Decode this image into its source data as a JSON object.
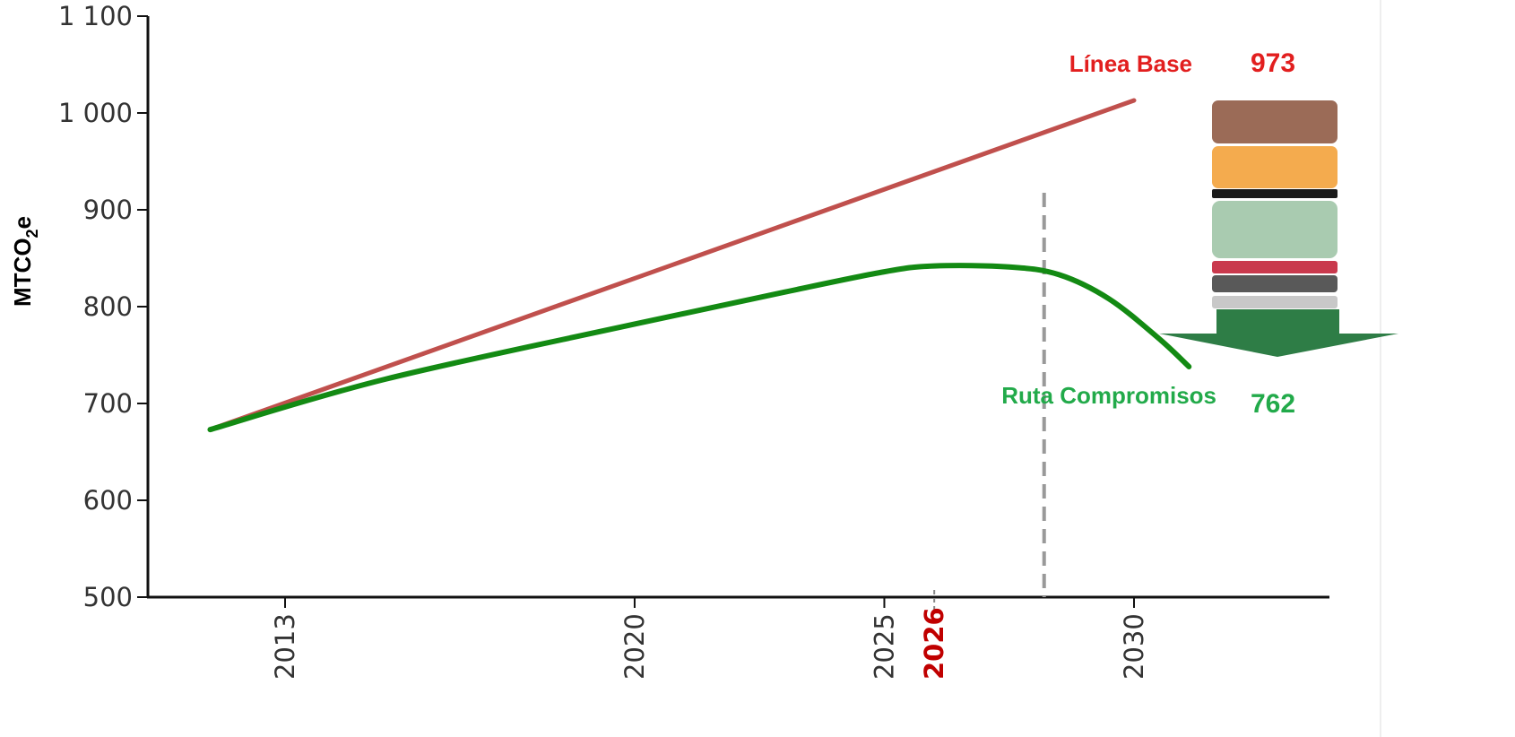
{
  "chart_data": {
    "type": "line",
    "ylabel": "MTCO2e",
    "ylabel_main": "MTCO",
    "ylabel_sub": "2",
    "ylabel_tail": "e",
    "ylim": [
      500,
      1100
    ],
    "yticks": [
      500,
      600,
      700,
      800,
      900,
      1000,
      1100
    ],
    "ytick_labels": [
      "500",
      "600",
      "700",
      "800",
      "900",
      "1 000",
      "1 100"
    ],
    "xlim": [
      2010.5,
      2033.5
    ],
    "xticks": [
      2013,
      2020,
      2025,
      2030
    ],
    "xtick_labels": [
      "2013",
      "2020",
      "2025",
      "2030"
    ],
    "highlight_tick": {
      "x": 2026,
      "label": "2026",
      "color": "#c00000"
    },
    "grid": false,
    "series": [
      {
        "name": "Línea Base",
        "color": "#c0504d",
        "x": [
          2011.5,
          2030
        ],
        "y": [
          673,
          1013
        ]
      },
      {
        "name": "Ruta Compromisos",
        "color": "#138a13",
        "x": [
          2011.5,
          2015,
          2020,
          2023,
          2025,
          2026,
          2027.5,
          2028.5,
          2029.5,
          2030.5,
          2031.1
        ],
        "y": [
          673,
          725,
          782,
          815,
          836,
          842,
          841,
          833,
          808,
          767,
          738
        ]
      }
    ],
    "reference_line": {
      "x": 2028.2,
      "color": "#999999",
      "style": "dashed"
    },
    "annotations": [
      {
        "text": "Línea Base",
        "color": "#e21f1f"
      },
      {
        "text": "973",
        "color": "#e21f1f"
      },
      {
        "text": "Ruta Compromisos",
        "color": "#22aa4a"
      },
      {
        "text": "762",
        "color": "#22aa4a"
      }
    ],
    "stacked_blocks": [
      {
        "color": "#9b6b57"
      },
      {
        "color": "#f4ab4e"
      },
      {
        "color": "#1b1b1b"
      },
      {
        "color": "#a9cbb0"
      },
      {
        "color": "#c9394d"
      },
      {
        "color": "#595959"
      },
      {
        "color": "#c8c8c8"
      }
    ],
    "arrow_color": "#2e7d46"
  }
}
